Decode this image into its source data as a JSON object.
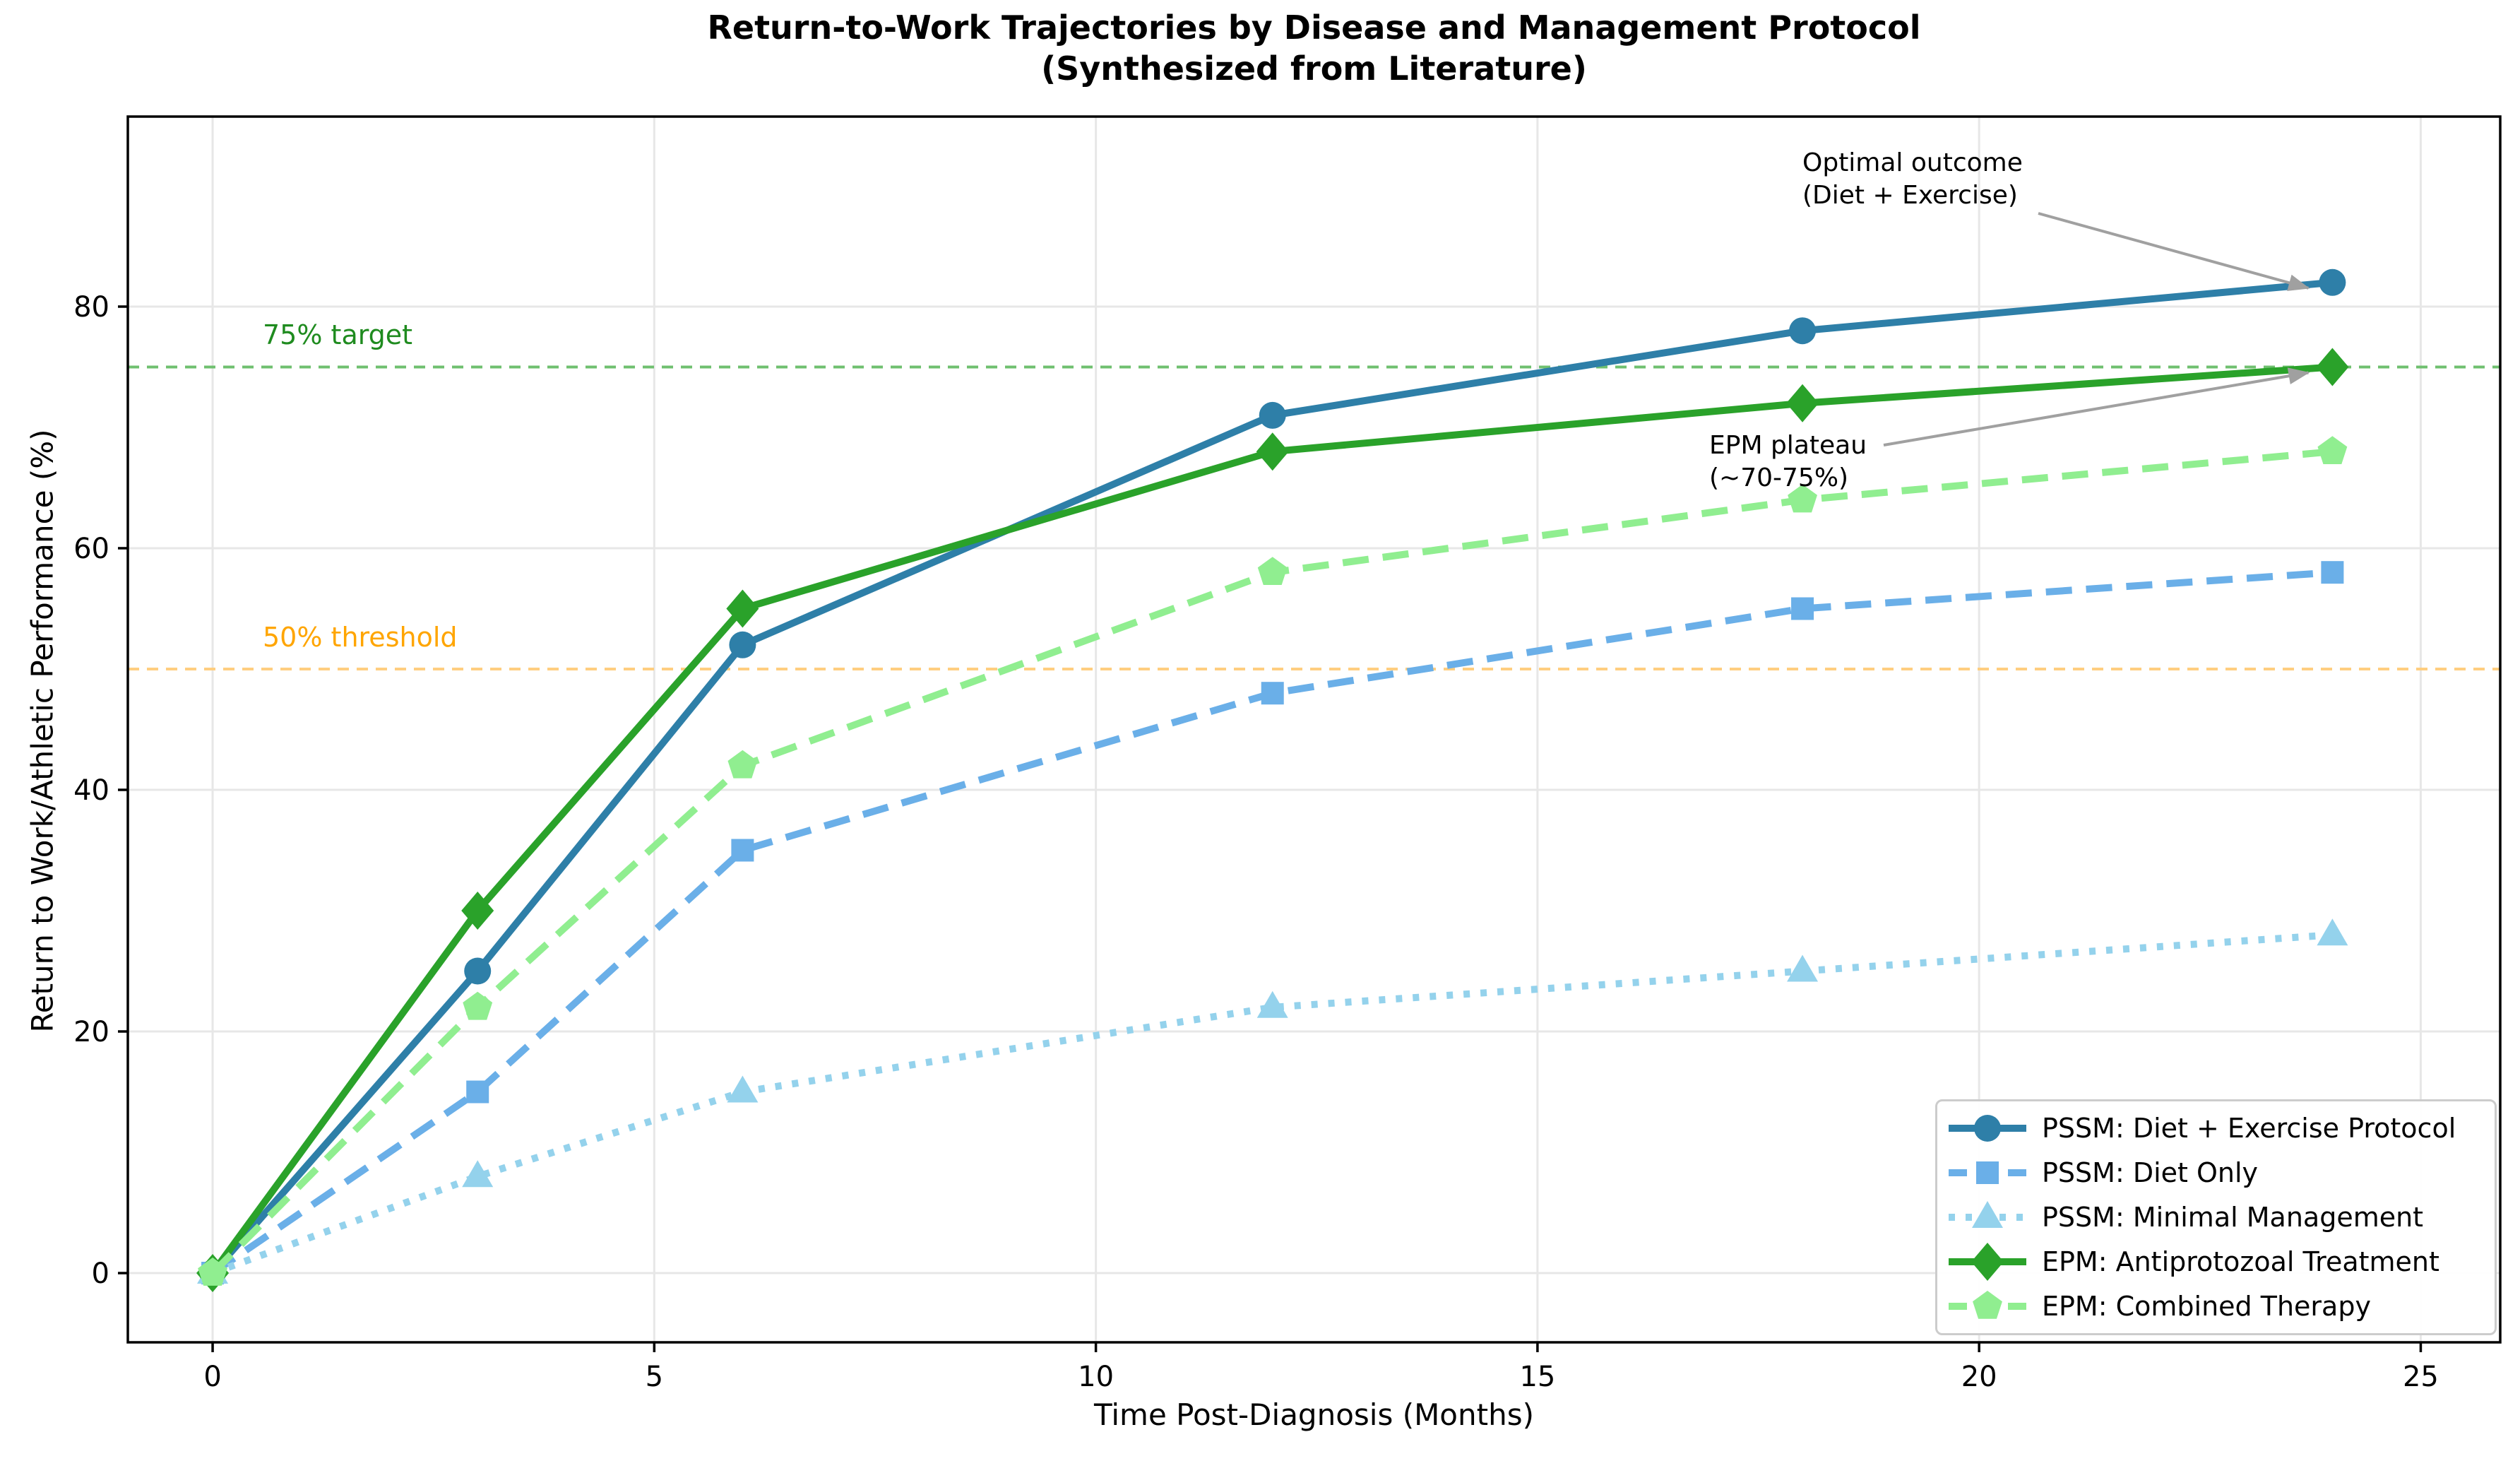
{
  "figure": {
    "title_line1": "Return-to-Work Trajectories by Disease and Management Protocol",
    "title_line2": "(Synthesized from Literature)",
    "xlabel": "Time Post-Diagnosis (Months)",
    "ylabel": "Return to Work/Athletic Performance (%)"
  },
  "chart_data": {
    "type": "line",
    "title": "Return-to-Work Trajectories by Disease and Management Protocol (Synthesized from Literature)",
    "xlabel": "Time Post-Diagnosis (Months)",
    "ylabel": "Return to Work/Athletic Performance (%)",
    "x": [
      0,
      3,
      6,
      12,
      18,
      24
    ],
    "series": [
      {
        "name": "PSSM: Diet + Exercise Protocol",
        "values": [
          0,
          25,
          52,
          71,
          78,
          82
        ],
        "color": "#2E7FA8",
        "line_style": "solid",
        "marker": "circle"
      },
      {
        "name": "PSSM: Diet Only",
        "values": [
          0,
          15,
          35,
          48,
          55,
          58
        ],
        "color": "#6AAFE8",
        "line_style": "dashed",
        "marker": "square"
      },
      {
        "name": "PSSM: Minimal Management",
        "values": [
          0,
          8,
          15,
          22,
          25,
          28
        ],
        "color": "#94D2EC",
        "line_style": "dotted",
        "marker": "triangle"
      },
      {
        "name": "EPM: Antiprotozoal Treatment",
        "values": [
          0,
          30,
          55,
          68,
          72,
          75
        ],
        "color": "#2AA22A",
        "line_style": "solid",
        "marker": "diamond"
      },
      {
        "name": "EPM: Combined Therapy",
        "values": [
          0,
          22,
          42,
          58,
          64,
          68
        ],
        "color": "#90EE90",
        "line_style": "dashed",
        "marker": "pentagon"
      }
    ],
    "xticks": [
      0,
      5,
      10,
      15,
      20,
      25
    ],
    "yticks": [
      0,
      20,
      40,
      60,
      80
    ],
    "xlim": [
      -0.96,
      25.9
    ],
    "ylim": [
      -5.73,
      95.73
    ],
    "grid": true,
    "legend_position": "lower right",
    "reference_lines": [
      {
        "label": "75% target",
        "value": 75,
        "line_color": "#6FC06F",
        "label_color": "#1F8B1F"
      },
      {
        "label": "50% threshold",
        "value": 50,
        "line_color": "#FFCE80",
        "label_color": "#FFA500"
      }
    ],
    "annotations": [
      {
        "text_line1": "Optimal outcome",
        "text_line2": "(Diet + Exercise)",
        "target_x": 24,
        "target_y": 82
      },
      {
        "text_line1": "EPM plateau",
        "text_line2": "(~70-75%)",
        "target_x": 24,
        "target_y": 75
      }
    ],
    "arrow_color": "#A0A0A0"
  }
}
